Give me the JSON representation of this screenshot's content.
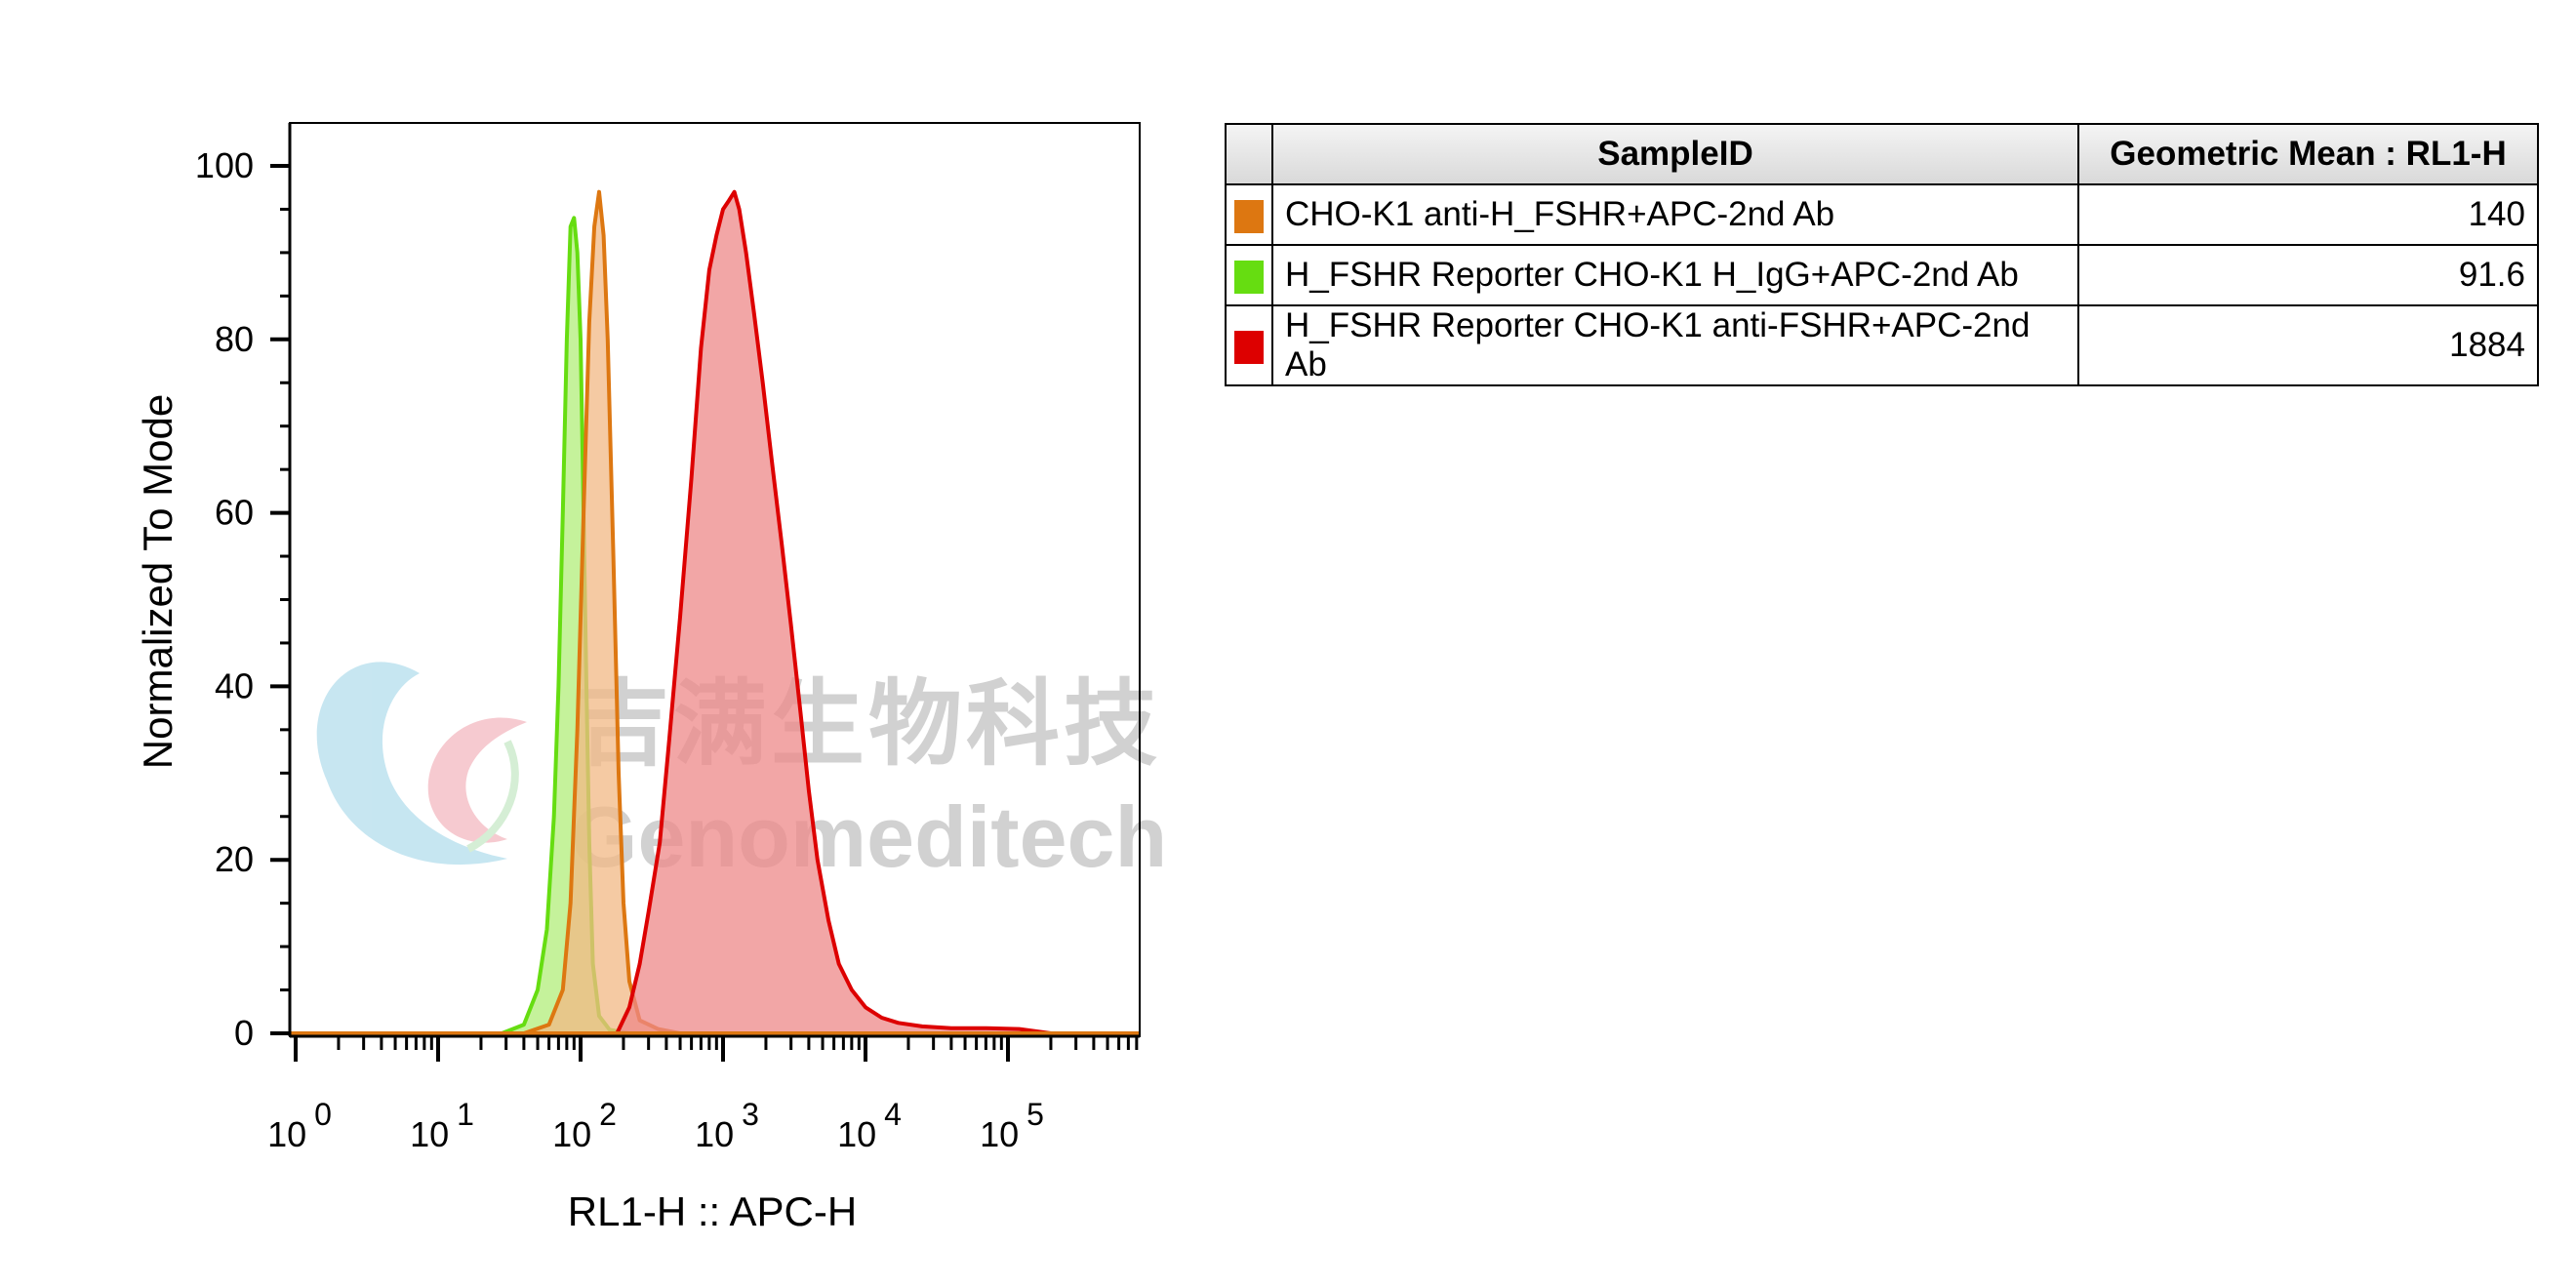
{
  "chart_data": {
    "type": "area",
    "title": "",
    "xlabel": "RL1-H :: APC-H",
    "ylabel": "Normalized To Mode",
    "x_scale": "log",
    "xlim": [
      1,
      1000000
    ],
    "ylim": [
      0,
      100
    ],
    "x_tick_labels": [
      {
        "base": "10",
        "exp": "0",
        "value": 1
      },
      {
        "base": "10",
        "exp": "1",
        "value": 10
      },
      {
        "base": "10",
        "exp": "2",
        "value": 100
      },
      {
        "base": "10",
        "exp": "3",
        "value": 1000
      },
      {
        "base": "10",
        "exp": "4",
        "value": 10000
      },
      {
        "base": "10",
        "exp": "5",
        "value": 100000
      }
    ],
    "y_ticks": [
      0,
      20,
      40,
      60,
      80,
      100
    ],
    "series": [
      {
        "name": "H_FSHR Reporter CHO-K1 H_IgG+APC-2nd Ab",
        "line_color": "#66dd11",
        "fill_color": "#b2ee7a",
        "points": [
          [
            28,
            0
          ],
          [
            40,
            1
          ],
          [
            50,
            5
          ],
          [
            58,
            12
          ],
          [
            65,
            25
          ],
          [
            70,
            40
          ],
          [
            75,
            60
          ],
          [
            80,
            80
          ],
          [
            85,
            93
          ],
          [
            90,
            94
          ],
          [
            95,
            90
          ],
          [
            100,
            80
          ],
          [
            105,
            60
          ],
          [
            110,
            40
          ],
          [
            115,
            22
          ],
          [
            122,
            8
          ],
          [
            135,
            2
          ],
          [
            160,
            0.4
          ],
          [
            220,
            0
          ]
        ]
      },
      {
        "name": "CHO-K1 anti-H_FSHR+APC-2nd Ab",
        "line_color": "#dd7711",
        "fill_color": "#f2b884",
        "points": [
          [
            40,
            0
          ],
          [
            60,
            1
          ],
          [
            75,
            5
          ],
          [
            85,
            15
          ],
          [
            95,
            35
          ],
          [
            105,
            60
          ],
          [
            115,
            82
          ],
          [
            125,
            93
          ],
          [
            135,
            97
          ],
          [
            145,
            92
          ],
          [
            155,
            80
          ],
          [
            170,
            55
          ],
          [
            185,
            30
          ],
          [
            200,
            15
          ],
          [
            220,
            6
          ],
          [
            260,
            1.5
          ],
          [
            350,
            0.5
          ],
          [
            500,
            0
          ]
        ]
      },
      {
        "name": "H_FSHR Reporter CHO-K1 anti-FSHR+APC-2nd Ab",
        "line_color": "#dd0000",
        "fill_color": "#ee8888",
        "points": [
          [
            180,
            0
          ],
          [
            220,
            3
          ],
          [
            260,
            8
          ],
          [
            300,
            14
          ],
          [
            360,
            22
          ],
          [
            420,
            34
          ],
          [
            500,
            48
          ],
          [
            600,
            64
          ],
          [
            700,
            79
          ],
          [
            800,
            88
          ],
          [
            900,
            92
          ],
          [
            1000,
            95
          ],
          [
            1100,
            96
          ],
          [
            1200,
            97
          ],
          [
            1300,
            95
          ],
          [
            1450,
            90
          ],
          [
            1650,
            83
          ],
          [
            1900,
            75
          ],
          [
            2200,
            66
          ],
          [
            2600,
            56
          ],
          [
            3000,
            47
          ],
          [
            3500,
            37
          ],
          [
            4000,
            28
          ],
          [
            4600,
            20
          ],
          [
            5500,
            13
          ],
          [
            6500,
            8
          ],
          [
            8000,
            5
          ],
          [
            10000,
            3
          ],
          [
            13000,
            1.8
          ],
          [
            17000,
            1.2
          ],
          [
            25000,
            0.8
          ],
          [
            40000,
            0.6
          ],
          [
            70000,
            0.6
          ],
          [
            120000,
            0.5
          ],
          [
            200000,
            0
          ]
        ]
      }
    ]
  },
  "legend_table": {
    "headers": [
      "SampleID",
      "Geometric Mean : RL1-H"
    ],
    "rows": [
      {
        "swatch": "#dd7711",
        "sample": "CHO-K1 anti-H_FSHR+APC-2nd Ab",
        "value": "140"
      },
      {
        "swatch": "#66dd11",
        "sample": "H_FSHR Reporter CHO-K1 H_IgG+APC-2nd Ab",
        "value": "91.6"
      },
      {
        "swatch": "#dd0000",
        "sample": "H_FSHR Reporter CHO-K1 anti-FSHR+APC-2nd Ab",
        "value": "1884"
      }
    ]
  },
  "watermark": {
    "chinese": "吉满生物科技",
    "english": "Genomeditech"
  }
}
